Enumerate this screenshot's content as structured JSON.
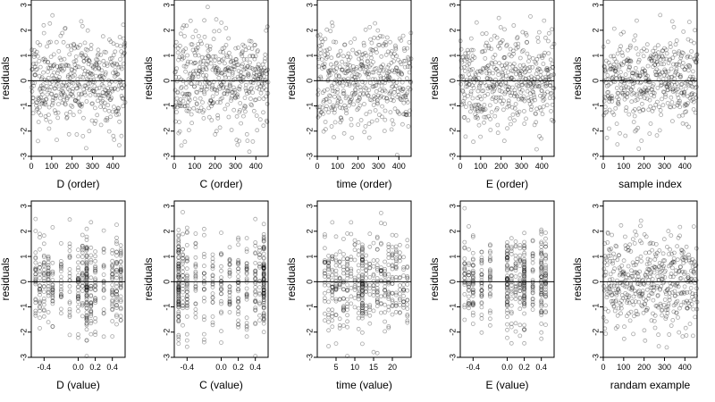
{
  "figure": {
    "point_color": "#000000",
    "point_opacity": 0.35,
    "zero_line_color": "#000000",
    "frame_color": "#000000"
  },
  "chart_data": [
    {
      "type": "scatter",
      "ylabel": "residuals",
      "xlabel": "D (order)",
      "xlim": [
        0,
        460
      ],
      "ylim": [
        -3,
        3.2
      ],
      "xticks": [
        0,
        100,
        200,
        300,
        400
      ],
      "yticks": [
        -3,
        -2,
        -1,
        0,
        1,
        2,
        3
      ],
      "xtick_labels": [
        "0",
        "100",
        "200",
        "300",
        "400"
      ],
      "ytick_labels": [
        "-3",
        "-2",
        "-1",
        "0",
        "1",
        "2",
        "3"
      ],
      "reference_line_y": 0,
      "grid": false,
      "n_points": 460,
      "x_distribution": "sequential index 1..460",
      "y_distribution": "residuals roughly N(0,1), range about -2.5 to 3.2",
      "seed": 11
    },
    {
      "type": "scatter",
      "ylabel": "residuals",
      "xlabel": "C (order)",
      "xlim": [
        0,
        460
      ],
      "ylim": [
        -3,
        3.2
      ],
      "xticks": [
        0,
        100,
        200,
        300,
        400
      ],
      "yticks": [
        -3,
        -2,
        -1,
        0,
        1,
        2,
        3
      ],
      "xtick_labels": [
        "0",
        "100",
        "200",
        "300",
        "400"
      ],
      "ytick_labels": [
        "-3",
        "-2",
        "-1",
        "0",
        "1",
        "2",
        "3"
      ],
      "reference_line_y": 0,
      "grid": false,
      "n_points": 460,
      "x_distribution": "sequential index 1..460",
      "y_distribution": "residuals roughly N(0,1), range about -2.9 to 3.1",
      "seed": 23
    },
    {
      "type": "scatter",
      "ylabel": "residuals",
      "xlabel": "time (order)",
      "xlim": [
        0,
        460
      ],
      "ylim": [
        -3,
        3.2
      ],
      "xticks": [
        0,
        100,
        200,
        300,
        400
      ],
      "yticks": [
        -3,
        -2,
        -1,
        0,
        1,
        2,
        3
      ],
      "xtick_labels": [
        "0",
        "100",
        "200",
        "300",
        "400"
      ],
      "ytick_labels": [
        "-3",
        "-2",
        "-1",
        "0",
        "1",
        "2",
        "3"
      ],
      "reference_line_y": 0,
      "grid": false,
      "n_points": 460,
      "x_distribution": "sequential index 1..460",
      "y_distribution": "residuals roughly N(0,1), range about -2.8 to 3.1",
      "seed": 37
    },
    {
      "type": "scatter",
      "ylabel": "residuals",
      "xlabel": "E (order)",
      "xlim": [
        0,
        460
      ],
      "ylim": [
        -3,
        3.2
      ],
      "xticks": [
        0,
        100,
        200,
        300,
        400
      ],
      "yticks": [
        -3,
        -2,
        -1,
        0,
        1,
        2,
        3
      ],
      "xtick_labels": [
        "0",
        "100",
        "200",
        "300",
        "400"
      ],
      "ytick_labels": [
        "-3",
        "-2",
        "-1",
        "0",
        "1",
        "2",
        "3"
      ],
      "reference_line_y": 0,
      "grid": false,
      "n_points": 460,
      "x_distribution": "sequential index 1..460",
      "y_distribution": "residuals roughly N(0,1), range about -2.8 to 3.2",
      "seed": 41
    },
    {
      "type": "scatter",
      "ylabel": "residuals",
      "xlabel": "sample index",
      "xlim": [
        0,
        460
      ],
      "ylim": [
        -3,
        3.2
      ],
      "xticks": [
        0,
        100,
        200,
        300,
        400
      ],
      "yticks": [
        -3,
        -2,
        -1,
        0,
        1,
        2,
        3
      ],
      "xtick_labels": [
        "0",
        "100",
        "200",
        "300",
        "400"
      ],
      "ytick_labels": [
        "-3",
        "-2",
        "-1",
        "0",
        "1",
        "2",
        "3"
      ],
      "reference_line_y": 0,
      "grid": false,
      "n_points": 460,
      "x_distribution": "sequential index 1..460",
      "y_distribution": "residuals roughly N(0,1), range about -2.5 to 3.2",
      "seed": 53
    },
    {
      "type": "scatter",
      "ylabel": "residuals",
      "xlabel": "D (value)",
      "xlim": [
        -0.55,
        0.55
      ],
      "ylim": [
        -3,
        3.2
      ],
      "xticks": [
        -0.4,
        0.0,
        0.2,
        0.4
      ],
      "yticks": [
        -3,
        -2,
        -1,
        0,
        1,
        2,
        3
      ],
      "xtick_labels": [
        "-0.4",
        "0.0",
        "0.2",
        "0.4"
      ],
      "ytick_labels": [
        "-3",
        "-2",
        "-1",
        "0",
        "1",
        "2",
        "3"
      ],
      "reference_line_y": 0,
      "grid": false,
      "n_points": 460,
      "x_distribution": "discrete levels -0.5..0.5 in steps of 0.05 with heavier density near 0.1",
      "y_distribution": "residuals roughly N(0,1)",
      "seed": 61
    },
    {
      "type": "scatter",
      "ylabel": "residuals",
      "xlabel": "C (value)",
      "xlim": [
        -0.55,
        0.55
      ],
      "ylim": [
        -3,
        3.2
      ],
      "xticks": [
        -0.4,
        0.0,
        0.2,
        0.4
      ],
      "yticks": [
        -3,
        -2,
        -1,
        0,
        1,
        2,
        3
      ],
      "xtick_labels": [
        "-0.4",
        "0.0",
        "0.2",
        "0.4"
      ],
      "ytick_labels": [
        "-3",
        "-2",
        "-1",
        "0",
        "1",
        "2",
        "3"
      ],
      "reference_line_y": 0,
      "grid": false,
      "n_points": 460,
      "x_distribution": "discrete levels concentrated at -0.5 and 0.5 with a few intermediate levels",
      "y_distribution": "residuals roughly N(0,1)",
      "seed": 71
    },
    {
      "type": "scatter",
      "ylabel": "residuals",
      "xlabel": "time (value)",
      "xlim": [
        0,
        25
      ],
      "ylim": [
        -3,
        3.2
      ],
      "xticks": [
        5,
        10,
        15,
        20
      ],
      "yticks": [
        -3,
        -2,
        -1,
        0,
        1,
        2,
        3
      ],
      "xtick_labels": [
        "5",
        "10",
        "15",
        "20"
      ],
      "ytick_labels": [
        "-3",
        "-2",
        "-1",
        "0",
        "1",
        "2",
        "3"
      ],
      "reference_line_y": 0,
      "grid": false,
      "n_points": 460,
      "x_distribution": "integer times 1..24 with a heavy column near 12",
      "y_distribution": "residuals roughly N(0,1)",
      "seed": 83
    },
    {
      "type": "scatter",
      "ylabel": "residuals",
      "xlabel": "E (value)",
      "xlim": [
        -0.55,
        0.55
      ],
      "ylim": [
        -3,
        3.2
      ],
      "xticks": [
        -0.4,
        0.0,
        0.2,
        0.4
      ],
      "yticks": [
        -3,
        -2,
        -1,
        0,
        1,
        2,
        3
      ],
      "xtick_labels": [
        "-0.4",
        "0.0",
        "0.2",
        "0.4"
      ],
      "ytick_labels": [
        "-3",
        "-2",
        "-1",
        "0",
        "1",
        "2",
        "3"
      ],
      "reference_line_y": 0,
      "grid": false,
      "n_points": 460,
      "x_distribution": "discrete levels with columns near -0.5, -0.3, 0.0, 0.1, 0.2, 0.4",
      "y_distribution": "residuals roughly N(0,1)",
      "seed": 97
    },
    {
      "type": "scatter",
      "ylabel": "residuals",
      "xlabel": "randam example",
      "xlim": [
        0,
        460
      ],
      "ylim": [
        -3,
        3.2
      ],
      "xticks": [
        0,
        100,
        200,
        300,
        400
      ],
      "yticks": [
        -3,
        -2,
        -1,
        0,
        1,
        2,
        3
      ],
      "xtick_labels": [
        "0",
        "100",
        "200",
        "300",
        "400"
      ],
      "ytick_labels": [
        "-3",
        "-2",
        "-1",
        "0",
        "1",
        "2",
        "3"
      ],
      "reference_line_y": 0,
      "grid": false,
      "n_points": 460,
      "x_distribution": "sequential index 1..460",
      "y_distribution": "random example residuals roughly N(0,1), range about -2.8 to 2.9",
      "seed": 101
    }
  ]
}
